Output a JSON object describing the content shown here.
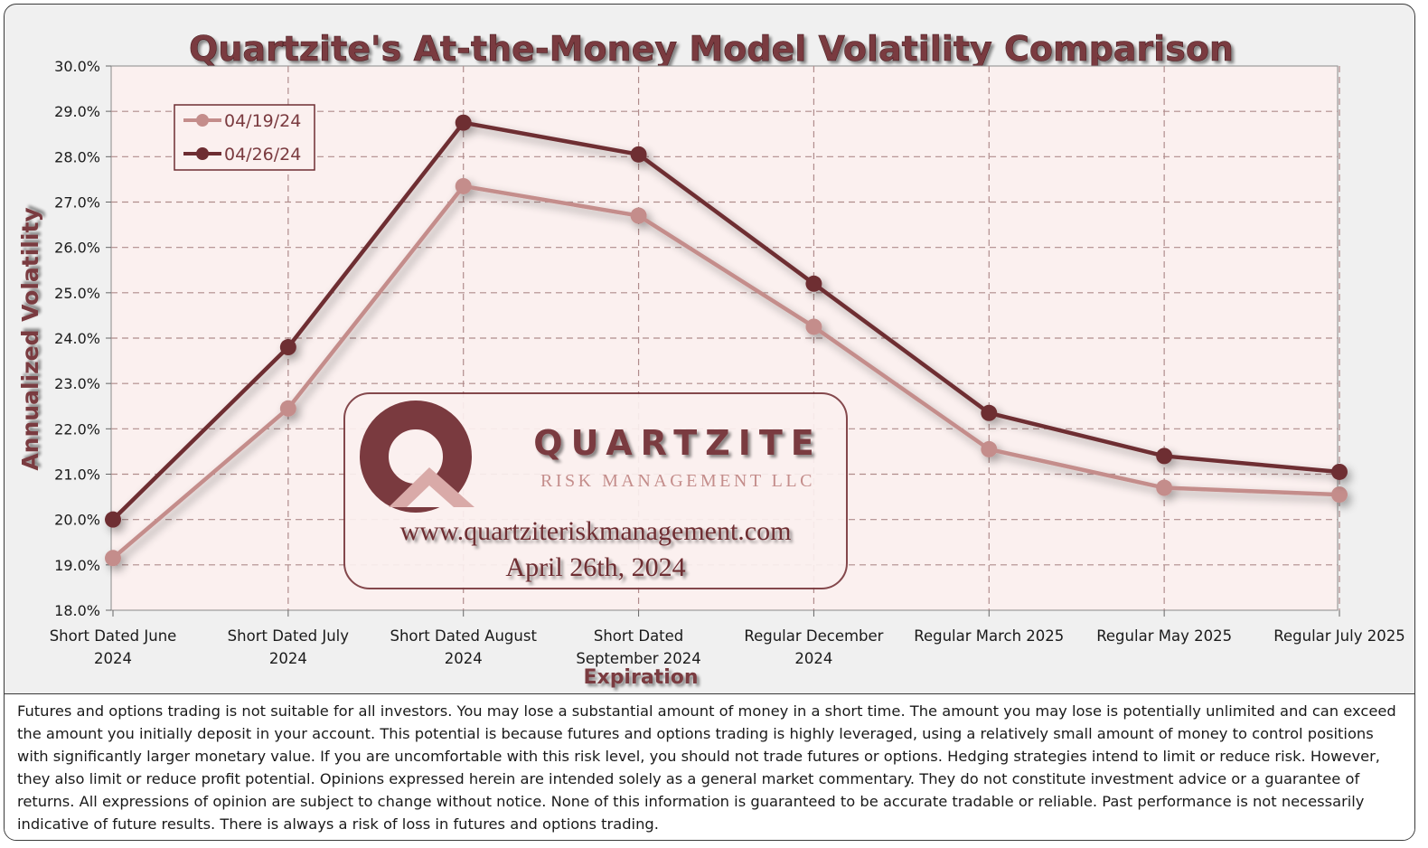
{
  "chart_data": {
    "type": "line",
    "title": "Quartzite's At-the-Money Model Volatility Comparison",
    "xlabel": "Expiration",
    "ylabel": "Annualized Volatility",
    "ylim": [
      18.0,
      30.0
    ],
    "y_ticks": [
      "30.0%",
      "29.0%",
      "28.0%",
      "27.0%",
      "26.0%",
      "25.0%",
      "24.0%",
      "23.0%",
      "22.0%",
      "21.0%",
      "20.0%",
      "19.0%",
      "18.0%"
    ],
    "categories": [
      [
        "Short Dated June",
        "2024"
      ],
      [
        "Short Dated July",
        "2024"
      ],
      [
        "Short Dated August",
        "2024"
      ],
      [
        "Short Dated",
        "September 2024"
      ],
      [
        "Regular December",
        "2024"
      ],
      [
        "Regular March 2025"
      ],
      [
        "Regular May 2025"
      ],
      [
        "Regular July 2025"
      ]
    ],
    "series": [
      {
        "name": "04/19/24",
        "color": "#c48d8b",
        "values": [
          19.15,
          22.45,
          27.35,
          26.7,
          24.25,
          21.55,
          20.7,
          20.55
        ]
      },
      {
        "name": "04/26/24",
        "color": "#6e2d32",
        "values": [
          20.0,
          23.8,
          28.75,
          28.05,
          25.2,
          22.35,
          21.4,
          21.05
        ]
      }
    ],
    "grid": true,
    "legend": "top-left"
  },
  "watermark": {
    "company": "QUARTZITE",
    "subtitle": "RISK MANAGEMENT LLC",
    "website": "www.quartziteriskmanagement.com",
    "date": "April 26th, 2024"
  },
  "disclaimer": "Futures and options trading is not suitable for all investors. You may lose a substantial amount of money in a short time. The amount you may lose is potentially unlimited and can exceed the amount you initially deposit in your account. This potential is because futures and options trading is highly leveraged, using a relatively small amount of money to control positions with significantly larger monetary value. If you are uncomfortable with this risk level, you should not trade futures or options. Hedging strategies intend to limit or reduce risk. However, they also limit or reduce profit potential. Opinions expressed herein are intended solely as a general market commentary. They do not constitute investment advice or a guarantee of returns. All expressions of opinion are subject to change without notice. None of this information is guaranteed to be accurate tradable or reliable. Past performance is not necessarily indicative of future results. There is always a risk of loss in futures and options trading.",
  "colors": {
    "title": "#7a3a3f",
    "plot_bg": "#fbf0ef",
    "grid": "#b08c8c",
    "accent_dark": "#6e2d32",
    "accent_light": "#c48d8b"
  }
}
